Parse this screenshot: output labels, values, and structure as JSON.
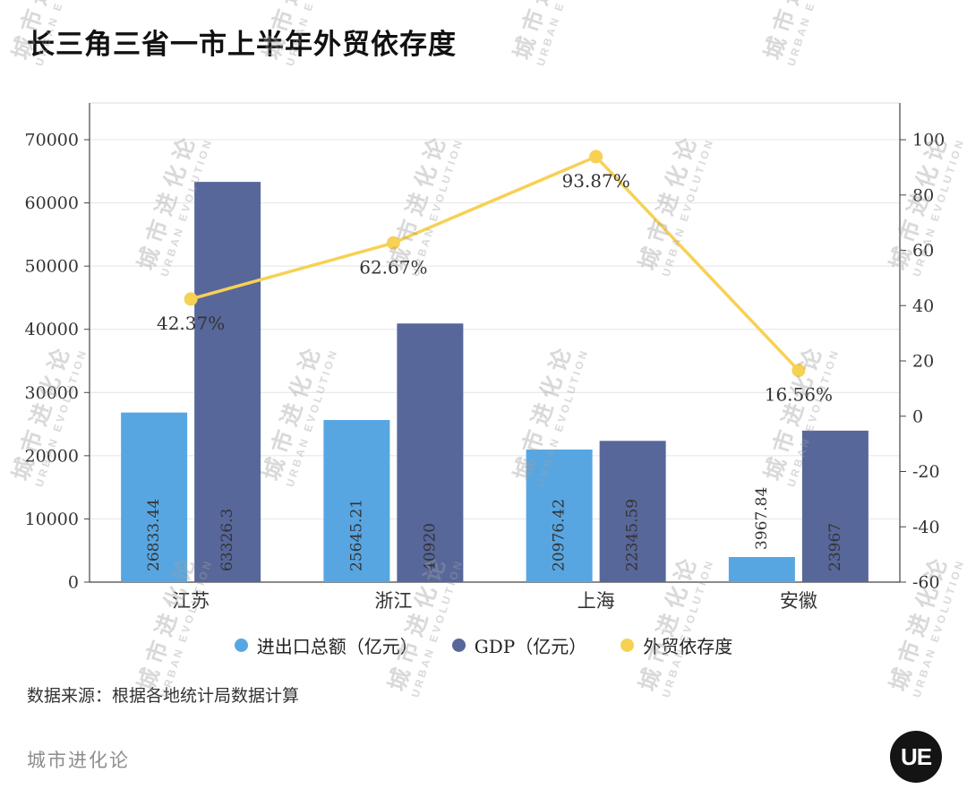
{
  "title": "长三角三省一市上半年外贸依存度",
  "watermark": {
    "cn": "城市进化论",
    "en": "URBAN EVOLUTION"
  },
  "source_note": "数据来源：根据各地统计局数据计算",
  "footer": {
    "brand": "城市进化论",
    "logo_text": "UE"
  },
  "legend": [
    {
      "key": "imports",
      "label": "进出口总额（亿元）",
      "color": "#57A6E2"
    },
    {
      "key": "gdp",
      "label": "GDP（亿元）",
      "color": "#57679A"
    },
    {
      "key": "dependence",
      "label": "外贸依存度",
      "color": "#F7D154"
    }
  ],
  "chart_data": {
    "type": "bar",
    "subtype": "bar+line combo, dual axis",
    "title": "长三角三省一市上半年外贸依存度",
    "categories": [
      "江苏",
      "浙江",
      "上海",
      "安徽"
    ],
    "series": [
      {
        "key": "imports",
        "name": "进出口总额（亿元）",
        "type": "bar",
        "axis": "left",
        "color": "#57A6E2",
        "values": [
          26833.44,
          25645.21,
          20976.42,
          3967.84
        ],
        "labels": [
          "26833.44",
          "25645.21",
          "20976.42",
          "3967.84"
        ]
      },
      {
        "key": "gdp",
        "name": "GDP（亿元）",
        "type": "bar",
        "axis": "left",
        "color": "#57679A",
        "values": [
          63326.3,
          40920,
          22345.59,
          23967
        ],
        "labels": [
          "63326.3",
          "40920",
          "22345.59",
          "23967"
        ]
      },
      {
        "key": "dependence",
        "name": "外贸依存度",
        "type": "line",
        "axis": "right",
        "color": "#F7D154",
        "values": [
          42.37,
          62.67,
          93.87,
          16.56
        ],
        "labels": [
          "42.37%",
          "62.67%",
          "93.87%",
          "16.56%"
        ]
      }
    ],
    "left_axis": {
      "min": 0,
      "max": 70000,
      "step": 10000
    },
    "right_axis": {
      "min": -60,
      "max": 100,
      "step": 20
    },
    "grid": true,
    "legend_position": "bottom"
  }
}
